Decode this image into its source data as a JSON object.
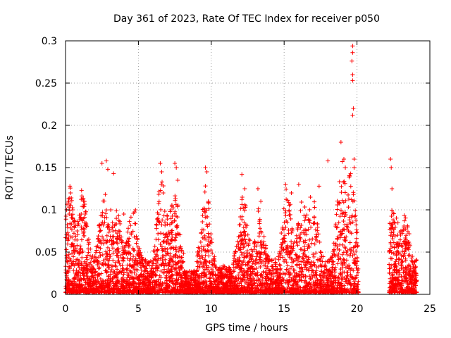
{
  "chart_data": {
    "type": "scatter",
    "title": "Day 361 of 2023, Rate Of TEC Index for receiver p050",
    "xlabel": "GPS time / hours",
    "ylabel": "ROTI / TECUs",
    "xlim": [
      0,
      25
    ],
    "ylim": [
      0,
      0.3
    ],
    "x_ticks": [
      "0",
      "5",
      "10",
      "15",
      "20",
      "25"
    ],
    "y_ticks": [
      "0",
      "0.05",
      "0.1",
      "0.15",
      "0.2",
      "0.25",
      "0.3"
    ],
    "grid": true,
    "marker": "+",
    "color": "#ff0000",
    "data_gap_hours": [
      20.1,
      22.2
    ],
    "series": [
      {
        "values": [
          [
            0.1,
            0.02
          ],
          [
            0.2,
            0.07
          ],
          [
            0.25,
            0.095
          ],
          [
            0.3,
            0.128
          ],
          [
            0.35,
            0.12
          ],
          [
            0.5,
            0.1
          ],
          [
            1.1,
            0.123
          ],
          [
            1.3,
            0.11
          ],
          [
            2.5,
            0.155
          ],
          [
            2.8,
            0.158
          ],
          [
            2.9,
            0.148
          ],
          [
            3.3,
            0.143
          ],
          [
            3.1,
            0.1
          ],
          [
            4.0,
            0.095
          ],
          [
            4.8,
            0.1
          ],
          [
            6.5,
            0.155
          ],
          [
            6.6,
            0.145
          ],
          [
            6.7,
            0.12
          ],
          [
            7.5,
            0.155
          ],
          [
            7.6,
            0.15
          ],
          [
            7.7,
            0.135
          ],
          [
            9.6,
            0.15
          ],
          [
            9.7,
            0.145
          ],
          [
            9.8,
            0.11
          ],
          [
            12.1,
            0.142
          ],
          [
            12.3,
            0.125
          ],
          [
            13.2,
            0.125
          ],
          [
            13.4,
            0.11
          ],
          [
            15.1,
            0.13
          ],
          [
            15.5,
            0.12
          ],
          [
            16.0,
            0.13
          ],
          [
            16.8,
            0.115
          ],
          [
            17.4,
            0.128
          ],
          [
            18.0,
            0.158
          ],
          [
            18.9,
            0.18
          ],
          [
            19.1,
            0.16
          ],
          [
            19.2,
            0.15
          ],
          [
            19.5,
            0.14
          ],
          [
            19.7,
            0.294
          ],
          [
            19.7,
            0.286
          ],
          [
            19.65,
            0.276
          ],
          [
            19.7,
            0.26
          ],
          [
            19.7,
            0.253
          ],
          [
            19.75,
            0.22
          ],
          [
            19.7,
            0.212
          ],
          [
            19.8,
            0.16
          ],
          [
            19.8,
            0.15
          ],
          [
            22.3,
            0.16
          ],
          [
            22.35,
            0.15
          ],
          [
            22.4,
            0.125
          ],
          [
            23.1,
            0.075
          ],
          [
            23.8,
            0.045
          ]
        ]
      }
    ]
  }
}
